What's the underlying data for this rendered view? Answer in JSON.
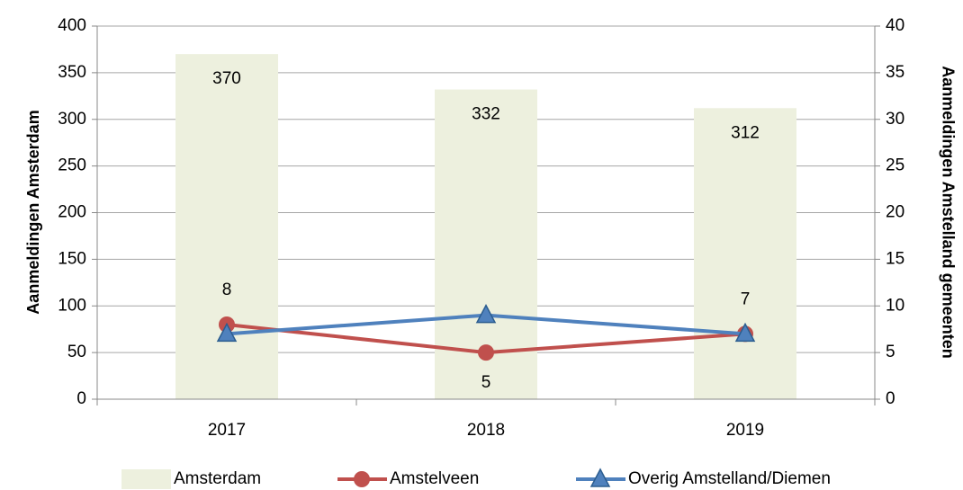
{
  "chart_data": {
    "type": "bar",
    "categories": [
      "2017",
      "2018",
      "2019"
    ],
    "ylabel": "Aanmeldingen Amsterdam",
    "y2label": "Aanmeldingen Amstelland gemeenten",
    "ylim": [
      0,
      400
    ],
    "yticks": [
      0,
      50,
      100,
      150,
      200,
      250,
      300,
      350,
      400
    ],
    "y2lim": [
      0,
      40
    ],
    "y2ticks": [
      0,
      5,
      10,
      15,
      20,
      25,
      30,
      35,
      40
    ],
    "grid": true,
    "legend": "bottom",
    "series": [
      {
        "name": "Amsterdam",
        "type": "bar",
        "color": "#edf0de",
        "values": [
          370,
          332,
          312
        ],
        "data_labels": true
      },
      {
        "name": "Amstelveen",
        "type": "line",
        "axis": "y2",
        "marker": "circle",
        "color": "#c0504d",
        "values": [
          8,
          5,
          7
        ],
        "data_labels": true
      },
      {
        "name": "Overig Amstelland/Diemen",
        "type": "line",
        "axis": "y2",
        "marker": "triangle",
        "color": "#4f81bd",
        "values": [
          7,
          9,
          7
        ],
        "data_labels": false
      }
    ]
  }
}
